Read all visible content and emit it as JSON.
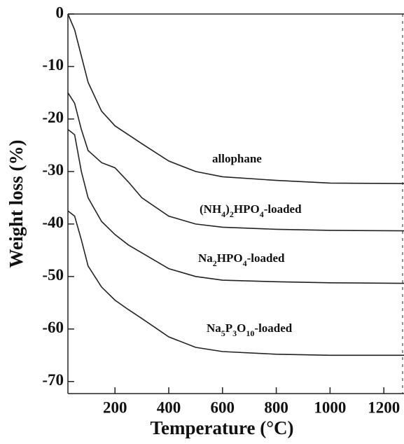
{
  "chart_data": {
    "type": "line",
    "xlabel": "Temperature (°C)",
    "ylabel": "Weight loss (%)",
    "x": [
      25,
      50,
      75,
      100,
      150,
      200,
      250,
      300,
      400,
      500,
      600,
      800,
      1000,
      1275
    ],
    "series": [
      {
        "name": "allophane",
        "color": "#222222",
        "values": [
          0,
          -3,
          -8,
          -13,
          -18.5,
          -21.3,
          -23,
          -24.7,
          -28,
          -30,
          -31,
          -31.7,
          -32.2,
          -32.3
        ]
      },
      {
        "name": "(NH4)2HPO4-loaded",
        "color": "#222222",
        "values": [
          -15,
          -17,
          -22,
          -26,
          -28.3,
          -29.3,
          -32,
          -35,
          -38.5,
          -40,
          -40.6,
          -41,
          -41.2,
          -41.3
        ]
      },
      {
        "name": "Na2HPO4-loaded",
        "color": "#222222",
        "values": [
          -22,
          -23,
          -30,
          -35,
          -39.5,
          -42,
          -44,
          -45.5,
          -48.5,
          -50,
          -50.7,
          -51,
          -51.2,
          -51.3
        ]
      },
      {
        "name": "Na5P3O10-loaded",
        "color": "#222222",
        "values": [
          -37.5,
          -38.5,
          -43,
          -48,
          -52,
          -54.5,
          -56.3,
          -58,
          -61.5,
          -63.5,
          -64.3,
          -64.8,
          -65,
          -65
        ]
      }
    ],
    "xlim": [
      25,
      1275
    ],
    "ylim": [
      -72.3,
      0
    ],
    "xticks": [
      200,
      400,
      600,
      800,
      1000,
      1200
    ],
    "yticks": [
      0,
      -10,
      -20,
      -30,
      -40,
      -50,
      -60,
      -70
    ]
  }
}
